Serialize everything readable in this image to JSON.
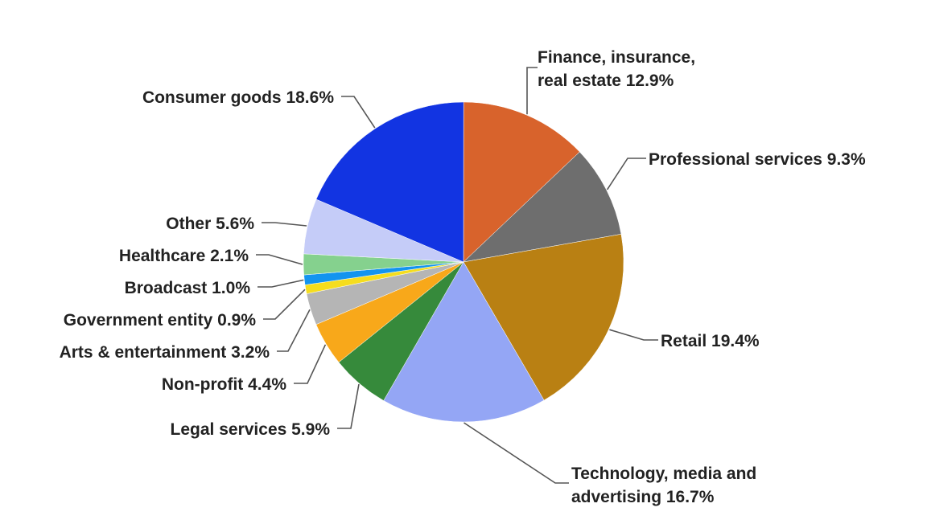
{
  "chart_data": {
    "type": "pie",
    "title": "",
    "legend": "none",
    "slices": [
      {
        "label": "Finance, insurance, real estate",
        "value": 12.9,
        "text": "Finance, insurance, real estate 12.9%",
        "color": "#D8632C"
      },
      {
        "label": "Professional services",
        "value": 9.3,
        "text": "Professional services 9.3%",
        "color": "#6E6E6E"
      },
      {
        "label": "Retail",
        "value": 19.4,
        "text": "Retail 19.4%",
        "color": "#B98013"
      },
      {
        "label": "Technology, media and advertising",
        "value": 16.7,
        "text": "Technology, media and advertising 16.7%",
        "color": "#94A6F5"
      },
      {
        "label": "Legal services",
        "value": 5.9,
        "text": "Legal services 5.9%",
        "color": "#368A3B"
      },
      {
        "label": "Non-profit",
        "value": 4.4,
        "text": "Non-profit 4.4%",
        "color": "#F8A81A"
      },
      {
        "label": "Arts & entertainment",
        "value": 3.2,
        "text": "Arts & entertainment 3.2%",
        "color": "#B5B5B5"
      },
      {
        "label": "Government entity",
        "value": 0.9,
        "text": "Government entity 0.9%",
        "color": "#F5DD1E"
      },
      {
        "label": "Broadcast",
        "value": 1.0,
        "text": "Broadcast 1.0%",
        "color": "#1394EF"
      },
      {
        "label": "Healthcare",
        "value": 2.1,
        "text": "Healthcare 2.1%",
        "color": "#85D18E"
      },
      {
        "label": "Other",
        "value": 5.6,
        "text": "Other 5.6%",
        "color": "#C5CCF8"
      },
      {
        "label": "Consumer goods",
        "value": 18.6,
        "text": "Consumer goods 18.6%",
        "color": "#1234E2"
      }
    ]
  }
}
